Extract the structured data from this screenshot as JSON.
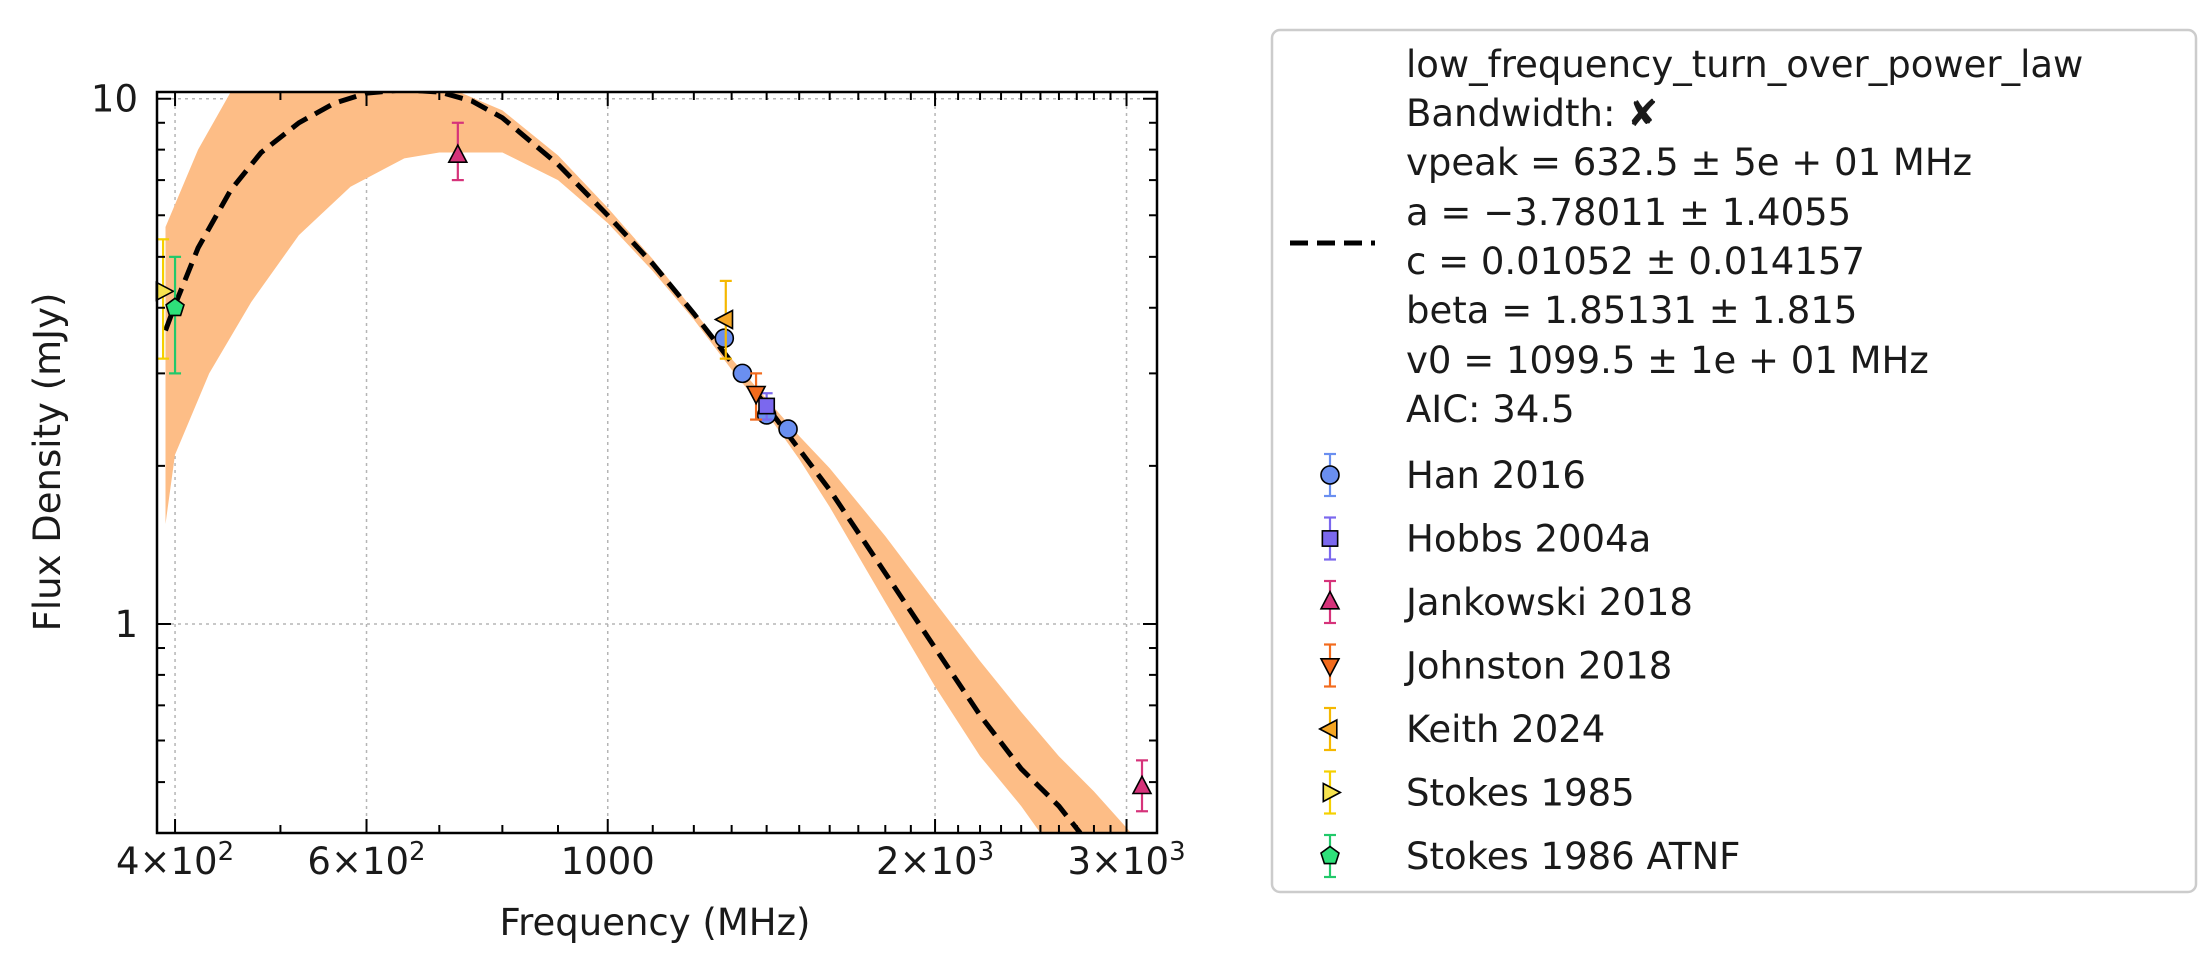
{
  "chart_data": {
    "type": "scatter",
    "title": "",
    "xlabel": "Frequency (MHz)",
    "ylabel": "Flux Density (mJy)",
    "xscale": "log",
    "yscale": "log",
    "xlim": [
      385,
      3200
    ],
    "ylim": [
      0.4,
      10.3
    ],
    "grid": true,
    "legend_position": "outside-right",
    "x_ticks": [
      {
        "value": 400,
        "base": "4",
        "exp": "2"
      },
      {
        "value": 600,
        "base": "6",
        "exp": "2"
      },
      {
        "value": 1000,
        "label": "1000"
      },
      {
        "value": 2000,
        "base": "2",
        "exp": "3"
      },
      {
        "value": 3000,
        "base": "3",
        "exp": "3"
      }
    ],
    "y_ticks": [
      {
        "value": 1,
        "label": "1"
      },
      {
        "value": 10,
        "label": "10"
      }
    ],
    "fit": {
      "name": "low_frequency_turn_over_power_law",
      "bandwidth_label": "Bandwidth: ",
      "bandwidth_mark": "✘",
      "params": [
        "vpeak = 632.5 ± 5e + 01 MHz",
        "a = −3.78011 ± 1.4055",
        "c = 0.01052 ± 0.014157",
        "beta = 1.85131 ± 1.815",
        "v0 = 1099.5 ± 1e + 01 MHz",
        "AIC: 34.5"
      ],
      "curve": [
        [
          392,
          3.62
        ],
        [
          400,
          4.05
        ],
        [
          420,
          5.2
        ],
        [
          450,
          6.7
        ],
        [
          480,
          7.9
        ],
        [
          520,
          9.0
        ],
        [
          560,
          9.8
        ],
        [
          600,
          10.25
        ],
        [
          650,
          10.4
        ],
        [
          700,
          10.3
        ],
        [
          750,
          9.9
        ],
        [
          800,
          9.2
        ],
        [
          900,
          7.5
        ],
        [
          1000,
          6.0
        ],
        [
          1100,
          4.85
        ],
        [
          1200,
          3.9
        ],
        [
          1300,
          3.15
        ],
        [
          1400,
          2.6
        ],
        [
          1500,
          2.15
        ],
        [
          1600,
          1.8
        ],
        [
          1800,
          1.25
        ],
        [
          2000,
          0.9
        ],
        [
          2200,
          0.67
        ],
        [
          2400,
          0.53
        ],
        [
          2600,
          0.45
        ],
        [
          2720,
          0.4
        ]
      ],
      "band_upper": [
        [
          392,
          5.7
        ],
        [
          420,
          8.0
        ],
        [
          450,
          10.3
        ],
        [
          700,
          10.3
        ],
        [
          730,
          10.3
        ],
        [
          800,
          9.5
        ],
        [
          900,
          7.8
        ],
        [
          1000,
          6.2
        ],
        [
          1100,
          4.95
        ],
        [
          1200,
          3.95
        ],
        [
          1300,
          3.2
        ],
        [
          1400,
          2.68
        ],
        [
          1500,
          2.28
        ],
        [
          1600,
          1.98
        ],
        [
          1800,
          1.47
        ],
        [
          2000,
          1.1
        ],
        [
          2200,
          0.85
        ],
        [
          2400,
          0.68
        ],
        [
          2600,
          0.56
        ],
        [
          2800,
          0.48
        ],
        [
          3030,
          0.4
        ]
      ],
      "band_lower": [
        [
          392,
          1.55
        ],
        [
          400,
          2.1
        ],
        [
          430,
          3.0
        ],
        [
          470,
          4.1
        ],
        [
          520,
          5.5
        ],
        [
          580,
          6.8
        ],
        [
          650,
          7.7
        ],
        [
          700,
          7.9
        ],
        [
          800,
          7.9
        ],
        [
          900,
          7.0
        ],
        [
          1000,
          5.8
        ],
        [
          1100,
          4.7
        ],
        [
          1200,
          3.8
        ],
        [
          1300,
          3.05
        ],
        [
          1400,
          2.52
        ],
        [
          1500,
          2.06
        ],
        [
          1600,
          1.67
        ],
        [
          1800,
          1.1
        ],
        [
          2000,
          0.76
        ],
        [
          2200,
          0.56
        ],
        [
          2400,
          0.45
        ],
        [
          2500,
          0.4
        ]
      ]
    },
    "series": [
      {
        "name": "Han 2016",
        "marker": "circle",
        "color": "#6a8ff0",
        "errcolor": "#6a8ff0",
        "points": [
          {
            "x": 1280,
            "y": 3.5,
            "lo": 3.5,
            "hi": 3.5
          },
          {
            "x": 1330,
            "y": 3.0,
            "lo": 3.0,
            "hi": 3.0
          },
          {
            "x": 1400,
            "y": 2.5,
            "lo": 2.5,
            "hi": 2.5
          },
          {
            "x": 1465,
            "y": 2.35,
            "lo": 2.35,
            "hi": 2.35
          }
        ]
      },
      {
        "name": "Hobbs 2004a",
        "marker": "square",
        "color": "#7b68ee",
        "errcolor": "#7b68ee",
        "points": [
          {
            "x": 1400,
            "y": 2.6,
            "lo": 2.45,
            "hi": 2.75
          }
        ]
      },
      {
        "name": "Jankowski 2018",
        "marker": "triangle-up",
        "color": "#d6337a",
        "errcolor": "#d6337a",
        "points": [
          {
            "x": 728,
            "y": 7.8,
            "lo": 7.0,
            "hi": 9.0
          },
          {
            "x": 3100,
            "y": 0.49,
            "lo": 0.44,
            "hi": 0.55
          }
        ]
      },
      {
        "name": "Johnston 2018",
        "marker": "triangle-down",
        "color": "#f26b1d",
        "errcolor": "#f26b1d",
        "points": [
          {
            "x": 1369,
            "y": 2.75,
            "lo": 2.45,
            "hi": 3.0
          }
        ]
      },
      {
        "name": "Keith 2024",
        "marker": "triangle-left",
        "color": "#f5a623",
        "errcolor": "#f5b800",
        "points": [
          {
            "x": 1284,
            "y": 3.8,
            "lo": 3.2,
            "hi": 4.5
          }
        ]
      },
      {
        "name": "Stokes 1985",
        "marker": "triangle-right",
        "color": "#f7e34f",
        "errcolor": "#f5d000",
        "points": [
          {
            "x": 390,
            "y": 4.3,
            "lo": 3.2,
            "hi": 5.4
          }
        ]
      },
      {
        "name": "Stokes 1986 ATNF",
        "marker": "pentagon",
        "color": "#2ee07a",
        "errcolor": "#22c96a",
        "points": [
          {
            "x": 400,
            "y": 4.0,
            "lo": 3.0,
            "hi": 5.0
          }
        ]
      }
    ]
  }
}
